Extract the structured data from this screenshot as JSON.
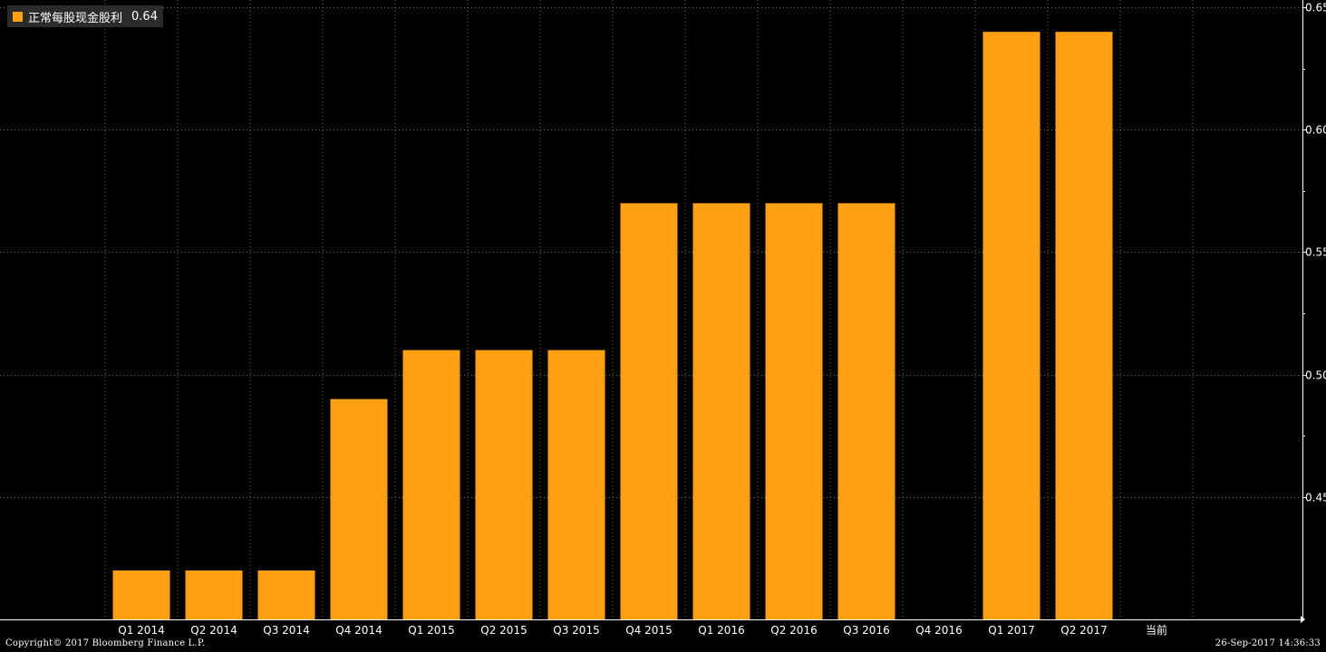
{
  "legend": {
    "label": "正常每股现金股利",
    "value": "0.64",
    "color": "#ff9f12"
  },
  "footer": {
    "copyright": "Copyright© 2017 Bloomberg Finance L.P.",
    "timestamp": "26-Sep-2017 14:36:33"
  },
  "chart_data": {
    "type": "bar",
    "categories": [
      "Q1 2014",
      "Q2 2014",
      "Q3 2014",
      "Q4 2014",
      "Q1 2015",
      "Q2 2015",
      "Q3 2015",
      "Q4 2015",
      "Q1 2016",
      "Q2 2016",
      "Q3 2016",
      "Q4 2016",
      "Q1 2017",
      "Q2 2017",
      "当前"
    ],
    "series": [
      {
        "name": "正常每股现金股利",
        "values": [
          0.42,
          0.42,
          0.42,
          0.49,
          0.51,
          0.51,
          0.51,
          0.57,
          0.57,
          0.57,
          0.57,
          null,
          0.64,
          0.64,
          null
        ]
      }
    ],
    "yticks": [
      "0.45",
      "0.50",
      "0.55",
      "0.60",
      "0.65"
    ],
    "ylim": [
      0.4,
      0.653
    ],
    "y_axis_position": "right",
    "grid": true,
    "legend_position": "top-left",
    "colors": {
      "bar": "#ff9f12",
      "background": "#000000",
      "grid": "#6a6a6a",
      "axis": "#ffffff",
      "text": "#ffffff"
    }
  }
}
